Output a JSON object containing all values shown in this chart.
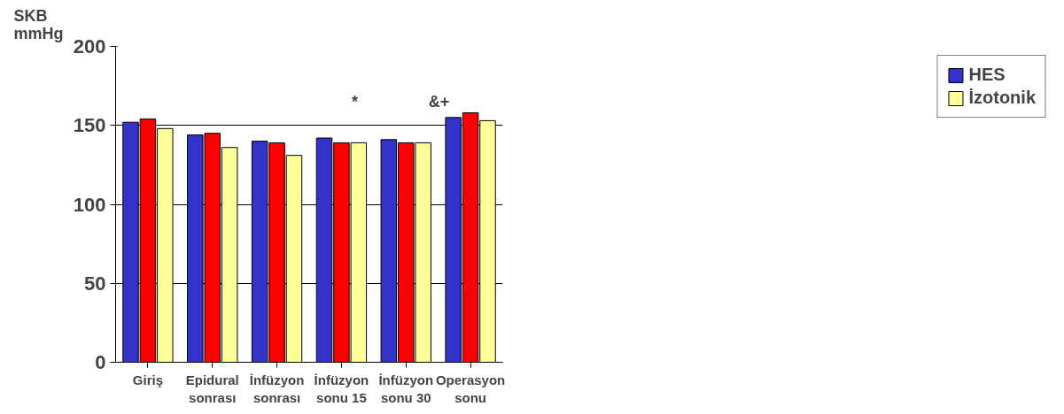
{
  "chart_data": {
    "type": "bar",
    "ylabel": "SKB mmHg",
    "categories": [
      "Giriş",
      "Epidural sonrası",
      "İnfüzyon sonrası",
      "İnfüzyon sonu 15",
      "İnfüzyon sonu 30",
      "Operasyon sonu"
    ],
    "series": [
      {
        "name": "HES",
        "color": "#3333cc",
        "values": [
          152,
          144,
          140,
          142,
          141,
          155
        ]
      },
      {
        "color": "#ff0000",
        "values": [
          154,
          145,
          139,
          139,
          139,
          158
        ]
      },
      {
        "name": "İzotonik",
        "color": "#ffff99",
        "values": [
          148,
          136,
          131,
          139,
          139,
          153
        ]
      }
    ],
    "ylim": [
      0,
      200
    ],
    "yticks": [
      0,
      50,
      100,
      150,
      200
    ],
    "grid": "y",
    "legend": "right",
    "annotations": [
      "*",
      "&+"
    ]
  }
}
